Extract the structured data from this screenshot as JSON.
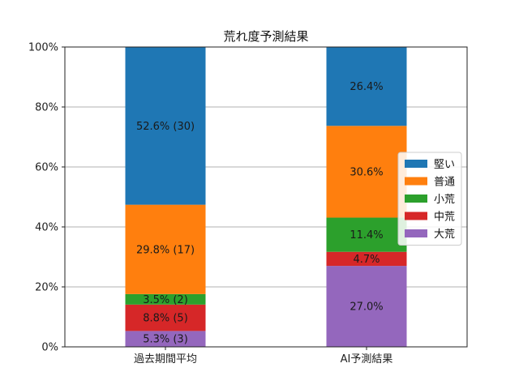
{
  "chart_data": {
    "type": "bar",
    "stacked": true,
    "title": "荒れ度予測結果",
    "xlabel": "",
    "ylabel": "",
    "categories": [
      "過去期間平均",
      "AI予測結果"
    ],
    "y_ticks": [
      "0%",
      "20%",
      "40%",
      "60%",
      "80%",
      "100%"
    ],
    "ylim": [
      0,
      100
    ],
    "grid": "horizontal",
    "legend_position": "right",
    "series": [
      {
        "name": "大荒",
        "color": "#9467bd",
        "values": [
          5.3,
          27.0
        ],
        "labels": [
          "5.3% (3)",
          "27.0%"
        ]
      },
      {
        "name": "中荒",
        "color": "#d62728",
        "values": [
          8.8,
          4.7
        ],
        "labels": [
          "8.8% (5)",
          "4.7%"
        ]
      },
      {
        "name": "小荒",
        "color": "#2ca02c",
        "values": [
          3.5,
          11.4
        ],
        "labels": [
          "3.5% (2)",
          "11.4%"
        ]
      },
      {
        "name": "普通",
        "color": "#ff7f0e",
        "values": [
          29.8,
          30.6
        ],
        "labels": [
          "29.8% (17)",
          "30.6%"
        ]
      },
      {
        "name": "堅い",
        "color": "#1f77b4",
        "values": [
          52.6,
          26.4
        ],
        "labels": [
          "52.6% (30)",
          "26.4%"
        ]
      }
    ],
    "legend_order": [
      "堅い",
      "普通",
      "小荒",
      "中荒",
      "大荒"
    ]
  }
}
